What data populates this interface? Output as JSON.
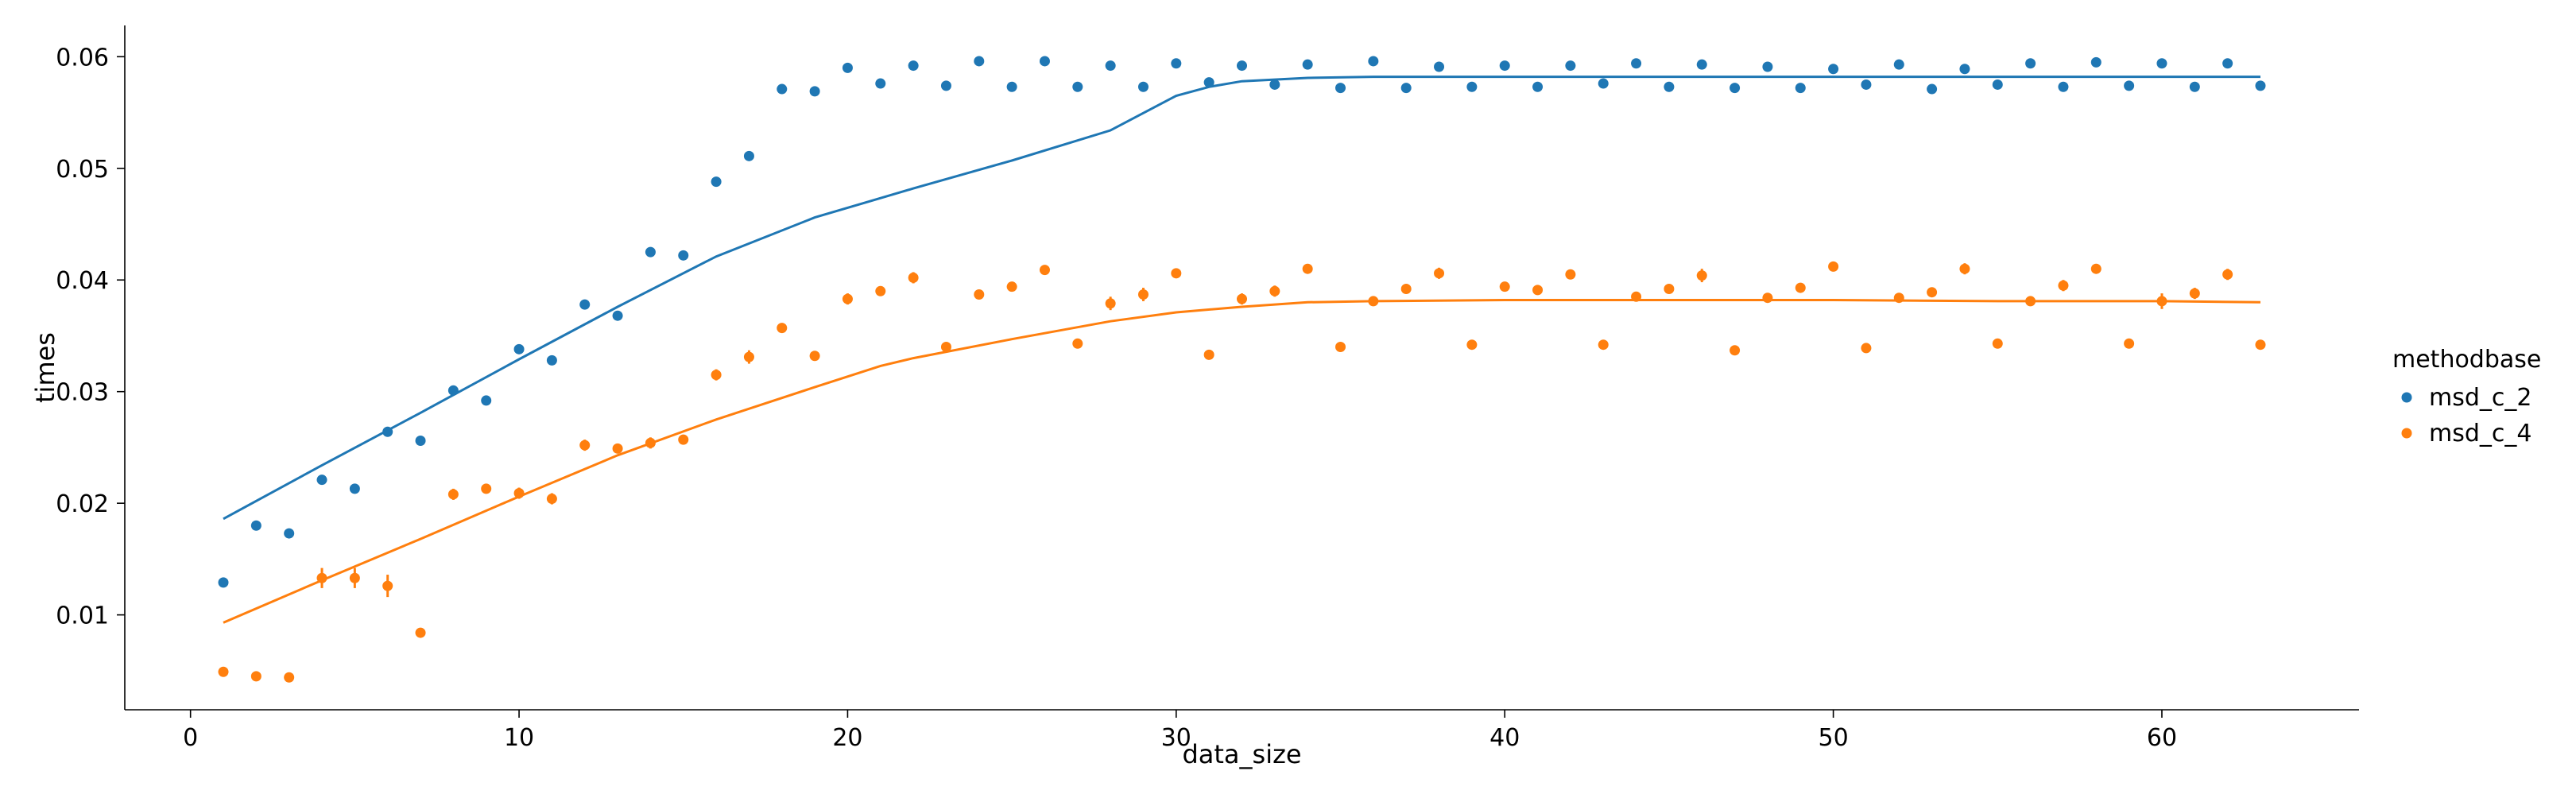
{
  "chart_data": {
    "type": "scatter",
    "title": "",
    "xlabel": "data_size",
    "ylabel": "times",
    "xlim": [
      -2,
      66
    ],
    "ylim": [
      0.0015,
      0.0628
    ],
    "xticks": [
      0,
      10,
      20,
      30,
      40,
      50,
      60
    ],
    "yticks": [
      0.01,
      0.02,
      0.03,
      0.04,
      0.05,
      0.06
    ],
    "xtick_labels": [
      "0",
      "10",
      "20",
      "30",
      "40",
      "50",
      "60"
    ],
    "ytick_labels": [
      "0.01",
      "0.02",
      "0.03",
      "0.04",
      "0.05",
      "0.06"
    ],
    "grid": false,
    "legend": {
      "title": "methodbase",
      "placement": "right",
      "entries": [
        "msd_c_2",
        "msd_c_4"
      ]
    },
    "series": [
      {
        "name": "msd_c_2",
        "color": "#1f77b4",
        "x": [
          1,
          2,
          3,
          4,
          5,
          6,
          7,
          8,
          9,
          10,
          11,
          12,
          13,
          14,
          15,
          16,
          17,
          18,
          19,
          20,
          21,
          22,
          23,
          24,
          25,
          26,
          27,
          28,
          29,
          30,
          31,
          32,
          33,
          34,
          35,
          36,
          37,
          38,
          39,
          40,
          41,
          42,
          43,
          44,
          45,
          46,
          47,
          48,
          49,
          50,
          51,
          52,
          53,
          54,
          55,
          56,
          57,
          58,
          59,
          60,
          61,
          62,
          63
        ],
        "y": [
          0.0129,
          0.018,
          0.0173,
          0.0221,
          0.0213,
          0.0264,
          0.0256,
          0.0301,
          0.0292,
          0.0338,
          0.0328,
          0.0378,
          0.0368,
          0.0425,
          0.0422,
          0.0488,
          0.0511,
          0.0571,
          0.0569,
          0.059,
          0.0576,
          0.0592,
          0.0574,
          0.0596,
          0.0573,
          0.0596,
          0.0573,
          0.0592,
          0.0573,
          0.0594,
          0.0577,
          0.0592,
          0.0575,
          0.0593,
          0.0572,
          0.0596,
          0.0572,
          0.0591,
          0.0573,
          0.0592,
          0.0573,
          0.0592,
          0.0576,
          0.0594,
          0.0573,
          0.0593,
          0.0572,
          0.0591,
          0.0572,
          0.0589,
          0.0575,
          0.0593,
          0.0571,
          0.0589,
          0.0575,
          0.0594,
          0.0573,
          0.0595,
          0.0574,
          0.0594,
          0.0573,
          0.0594,
          0.0574
        ],
        "err": [
          0,
          0,
          0,
          0,
          0,
          0,
          0,
          0,
          0,
          0,
          0,
          0,
          0,
          0,
          0,
          0,
          0.0004,
          0,
          0,
          0,
          0.0004,
          0,
          0,
          0,
          0,
          0,
          0.0004,
          0,
          0,
          0,
          0,
          0,
          0,
          0,
          0,
          0,
          0,
          0,
          0,
          0,
          0,
          0,
          0,
          0,
          0,
          0,
          0,
          0,
          0,
          0,
          0,
          0,
          0.0004,
          0,
          0,
          0,
          0,
          0,
          0,
          0,
          0.0004,
          0,
          0
        ],
        "fit": {
          "x": [
            1,
            4,
            7,
            10,
            13,
            16,
            19,
            22,
            25,
            28,
            30,
            31,
            32,
            34,
            36,
            40,
            45,
            50,
            55,
            60,
            63
          ],
          "y": [
            0.0186,
            0.0234,
            0.0281,
            0.0329,
            0.0376,
            0.0421,
            0.0456,
            0.0482,
            0.0507,
            0.0534,
            0.0565,
            0.0573,
            0.0578,
            0.0581,
            0.0582,
            0.0582,
            0.0582,
            0.0582,
            0.0582,
            0.0582,
            0.0582
          ]
        }
      },
      {
        "name": "msd_c_4",
        "color": "#ff7f0e",
        "x": [
          1,
          2,
          3,
          4,
          5,
          6,
          7,
          8,
          9,
          10,
          11,
          12,
          13,
          14,
          15,
          16,
          17,
          18,
          19,
          20,
          21,
          22,
          23,
          24,
          25,
          26,
          27,
          28,
          29,
          30,
          31,
          32,
          33,
          34,
          35,
          36,
          37,
          38,
          39,
          40,
          41,
          42,
          43,
          44,
          45,
          46,
          47,
          48,
          49,
          50,
          51,
          52,
          53,
          54,
          55,
          56,
          57,
          58,
          59,
          60,
          61,
          62,
          63
        ],
        "y": [
          0.0049,
          0.0045,
          0.0044,
          0.0133,
          0.0133,
          0.0126,
          0.0084,
          0.0208,
          0.0213,
          0.0209,
          0.0204,
          0.0252,
          0.0249,
          0.0254,
          0.0257,
          0.0315,
          0.0331,
          0.0357,
          0.0332,
          0.0383,
          0.039,
          0.0402,
          0.034,
          0.0387,
          0.0394,
          0.0409,
          0.0343,
          0.0379,
          0.0387,
          0.0406,
          0.0333,
          0.0383,
          0.039,
          0.041,
          0.034,
          0.0381,
          0.0392,
          0.0406,
          0.0342,
          0.0394,
          0.0391,
          0.0405,
          0.0342,
          0.0385,
          0.0392,
          0.0404,
          0.0337,
          0.0384,
          0.0393,
          0.0412,
          0.0339,
          0.0384,
          0.0389,
          0.041,
          0.0343,
          0.0381,
          0.0395,
          0.041,
          0.0343,
          0.0381,
          0.0388,
          0.0405,
          0.0342
        ],
        "err": [
          0,
          0,
          0,
          0.0009,
          0.0009,
          0.001,
          0,
          0.0005,
          0,
          0.0005,
          0.0005,
          0.0005,
          0,
          0.0005,
          0,
          0.0005,
          0.0006,
          0,
          0,
          0.0005,
          0,
          0.0005,
          0,
          0,
          0,
          0,
          0,
          0.0006,
          0.0006,
          0,
          0,
          0.0005,
          0.0005,
          0,
          0,
          0,
          0,
          0.0005,
          0,
          0,
          0,
          0,
          0,
          0,
          0,
          0.0006,
          0,
          0,
          0,
          0,
          0,
          0,
          0,
          0.0005,
          0,
          0,
          0.0005,
          0,
          0,
          0.0007,
          0.0005,
          0.0005,
          0
        ],
        "fit": {
          "x": [
            1,
            4,
            7,
            10,
            13,
            16,
            19,
            21,
            22,
            25,
            28,
            30,
            32,
            34,
            36,
            40,
            45,
            50,
            55,
            60,
            63
          ],
          "y": [
            0.0093,
            0.0131,
            0.0168,
            0.0206,
            0.0243,
            0.0275,
            0.0304,
            0.0323,
            0.033,
            0.0347,
            0.0363,
            0.0371,
            0.0376,
            0.038,
            0.0381,
            0.0382,
            0.0382,
            0.0382,
            0.0381,
            0.0381,
            0.038
          ]
        }
      }
    ]
  }
}
